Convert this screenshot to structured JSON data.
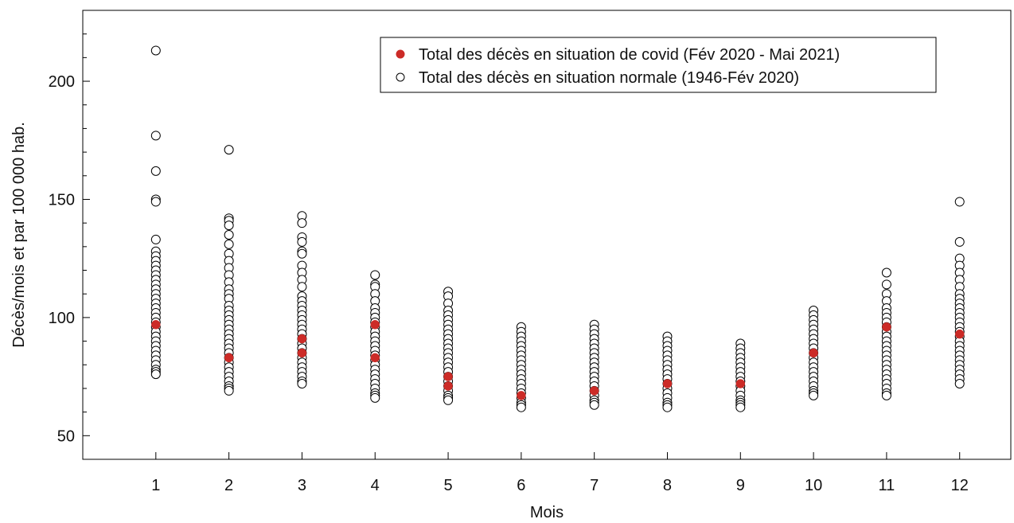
{
  "chart_data": {
    "type": "scatter",
    "xlabel": "Mois",
    "ylabel": "Décès/mois et par 100 000 hab.",
    "xlim": [
      0,
      12.7
    ],
    "ylim": [
      40,
      230
    ],
    "x_ticks": [
      1,
      2,
      3,
      4,
      5,
      6,
      7,
      8,
      9,
      10,
      11,
      12
    ],
    "y_ticks": [
      50,
      100,
      150,
      200
    ],
    "minor_y_step": 10,
    "grid": false,
    "legend_position": "top-right",
    "colors": {
      "covid": "#cc2b27",
      "normal_edge": "#000000",
      "normal_fill": "#ffffff"
    },
    "series": [
      {
        "name": "Total des décès en situation de covid (Fév 2020 - Mai 2021)",
        "marker": "filled-circle",
        "points": [
          {
            "x": 1,
            "y": 97
          },
          {
            "x": 2,
            "y": 83
          },
          {
            "x": 3,
            "y": 91
          },
          {
            "x": 3,
            "y": 85
          },
          {
            "x": 4,
            "y": 97
          },
          {
            "x": 4,
            "y": 83
          },
          {
            "x": 5,
            "y": 75
          },
          {
            "x": 5,
            "y": 71
          },
          {
            "x": 6,
            "y": 67
          },
          {
            "x": 7,
            "y": 69
          },
          {
            "x": 8,
            "y": 72
          },
          {
            "x": 9,
            "y": 72
          },
          {
            "x": 10,
            "y": 85
          },
          {
            "x": 11,
            "y": 96
          },
          {
            "x": 12,
            "y": 93
          }
        ]
      },
      {
        "name": "Total des décès en situation normale (1946-Fév 2020)",
        "marker": "open-circle",
        "points_by_month": [
          {
            "x": 1,
            "y": [
              213,
              177,
              162,
              150,
              149,
              133,
              128,
              126,
              124,
              122,
              120,
              118,
              116,
              114,
              112,
              110,
              108,
              106,
              104,
              102,
              100,
              98,
              96,
              94,
              92,
              90,
              88,
              86,
              84,
              82,
              80,
              78,
              77,
              76
            ]
          },
          {
            "x": 2,
            "y": [
              171,
              142,
              141,
              139,
              135,
              131,
              127,
              124,
              121,
              118,
              115,
              112,
              110,
              108,
              105,
              103,
              101,
              99,
              97,
              95,
              93,
              91,
              89,
              87,
              85,
              83,
              81,
              79,
              77,
              75,
              73,
              71,
              70,
              69
            ]
          },
          {
            "x": 3,
            "y": [
              143,
              140,
              134,
              132,
              128,
              127,
              122,
              119,
              116,
              113,
              109,
              107,
              105,
              103,
              101,
              99,
              97,
              95,
              93,
              91,
              89,
              87,
              85,
              83,
              81,
              79,
              77,
              75,
              73,
              72
            ]
          },
          {
            "x": 4,
            "y": [
              118,
              114,
              113,
              110,
              107,
              104,
              102,
              100,
              98,
              96,
              94,
              92,
              90,
              88,
              86,
              84,
              82,
              80,
              78,
              76,
              74,
              72,
              70,
              68,
              67,
              66
            ]
          },
          {
            "x": 5,
            "y": [
              111,
              109,
              106,
              103,
              101,
              99,
              97,
              95,
              93,
              91,
              89,
              87,
              85,
              83,
              81,
              79,
              77,
              75,
              73,
              71,
              69,
              67,
              66,
              65
            ]
          },
          {
            "x": 6,
            "y": [
              96,
              94,
              92,
              90,
              88,
              86,
              84,
              82,
              80,
              78,
              76,
              74,
              72,
              70,
              68,
              66,
              64,
              63,
              62
            ]
          },
          {
            "x": 7,
            "y": [
              97,
              95,
              93,
              91,
              89,
              87,
              85,
              83,
              81,
              79,
              77,
              75,
              73,
              71,
              69,
              67,
              65,
              64,
              63
            ]
          },
          {
            "x": 8,
            "y": [
              92,
              90,
              88,
              86,
              84,
              82,
              80,
              78,
              76,
              74,
              72,
              70,
              68,
              66,
              64,
              63,
              62
            ]
          },
          {
            "x": 9,
            "y": [
              89,
              87,
              85,
              83,
              81,
              79,
              77,
              75,
              73,
              71,
              69,
              67,
              65,
              64,
              63,
              62
            ]
          },
          {
            "x": 10,
            "y": [
              103,
              101,
              99,
              97,
              95,
              93,
              91,
              89,
              87,
              85,
              83,
              81,
              79,
              77,
              75,
              73,
              71,
              69,
              68,
              67
            ]
          },
          {
            "x": 11,
            "y": [
              119,
              114,
              110,
              107,
              104,
              102,
              100,
              98,
              96,
              94,
              92,
              90,
              88,
              86,
              84,
              82,
              80,
              78,
              76,
              74,
              72,
              70,
              68,
              67
            ]
          },
          {
            "x": 12,
            "y": [
              149,
              132,
              125,
              122,
              119,
              116,
              113,
              110,
              108,
              106,
              104,
              102,
              100,
              98,
              96,
              94,
              92,
              90,
              88,
              86,
              84,
              82,
              80,
              78,
              76,
              74,
              72
            ]
          }
        ]
      }
    ]
  }
}
